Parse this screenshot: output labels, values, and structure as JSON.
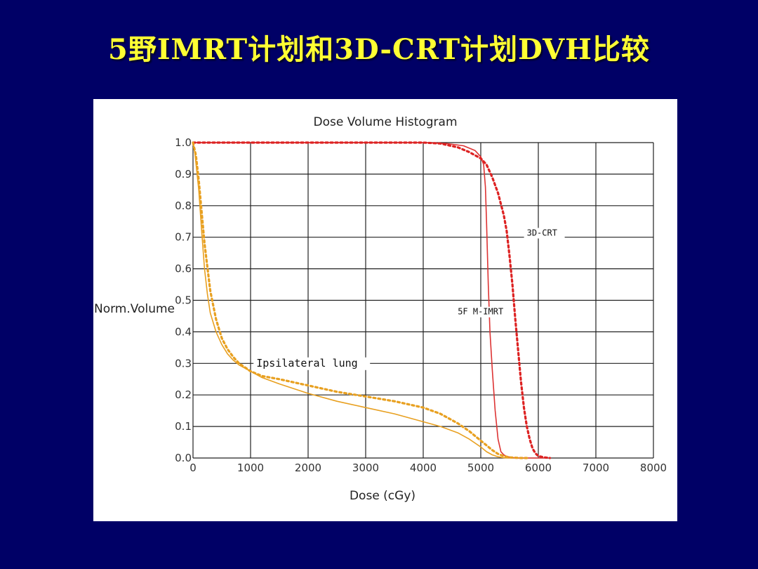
{
  "slide": {
    "title": "5野IMRT计划和3D-CRT计划DVH比较"
  },
  "chart_data": {
    "type": "line",
    "title": "Dose Volume Histogram",
    "xlabel": "Dose (cGy)",
    "ylabel": "Norm.Volume",
    "xlim": [
      0,
      8000
    ],
    "ylim": [
      0,
      1.0
    ],
    "xticks": [
      "0",
      "1000",
      "2000",
      "3000",
      "4000",
      "5000",
      "6000",
      "7000",
      "8000"
    ],
    "yticks": [
      "0.0",
      "0.1",
      "0.2",
      "0.3",
      "0.4",
      "0.5",
      "0.6",
      "0.7",
      "0.8",
      "0.9",
      "1.0"
    ],
    "grid": true,
    "annotations": [
      {
        "text": "3D-CRT",
        "x": 5800,
        "y": 0.705
      },
      {
        "text": "5F M-IMRT",
        "x": 4600,
        "y": 0.455
      },
      {
        "text": "Ipsilateral lung",
        "x": 1100,
        "y": 0.29
      }
    ],
    "series": [
      {
        "color": "#DD3333",
        "style": "solid",
        "x": [
          0,
          1000,
          2000,
          3000,
          4000,
          4400,
          4700,
          4900,
          5000,
          5050,
          5080,
          5100,
          5130,
          5160,
          5200,
          5250,
          5300,
          5350,
          5400,
          5450,
          5500,
          5600,
          5800,
          6000,
          6100
        ],
        "y": [
          1.0,
          1.0,
          1.0,
          1.0,
          1.0,
          0.997,
          0.99,
          0.975,
          0.955,
          0.93,
          0.86,
          0.75,
          0.55,
          0.4,
          0.28,
          0.15,
          0.06,
          0.02,
          0.01,
          0.005,
          0.003,
          0.0,
          0.0,
          0.0,
          0.0
        ]
      },
      {
        "color": "#DD2222",
        "style": "dotted",
        "x": [
          0,
          1000,
          2000,
          3000,
          4000,
          4300,
          4600,
          4800,
          5000,
          5100,
          5200,
          5300,
          5400,
          5450,
          5500,
          5550,
          5600,
          5650,
          5700,
          5750,
          5800,
          5850,
          5900,
          5950,
          6000,
          6100,
          6200
        ],
        "y": [
          1.0,
          1.0,
          1.0,
          1.0,
          1.0,
          0.997,
          0.985,
          0.97,
          0.95,
          0.93,
          0.89,
          0.84,
          0.77,
          0.72,
          0.64,
          0.55,
          0.44,
          0.34,
          0.24,
          0.16,
          0.1,
          0.06,
          0.03,
          0.015,
          0.006,
          0.002,
          0.0
        ]
      },
      {
        "color": "#E8A020",
        "style": "solid",
        "x": [
          0,
          30,
          60,
          100,
          150,
          200,
          250,
          300,
          400,
          500,
          600,
          700,
          800,
          1000,
          1200,
          1500,
          2000,
          2500,
          3000,
          3500,
          4000,
          4300,
          4600,
          4800,
          5000,
          5100,
          5200,
          5300,
          5400,
          5500
        ],
        "y": [
          1.0,
          0.97,
          0.92,
          0.85,
          0.72,
          0.6,
          0.52,
          0.46,
          0.4,
          0.36,
          0.33,
          0.31,
          0.295,
          0.275,
          0.255,
          0.235,
          0.205,
          0.18,
          0.16,
          0.14,
          0.115,
          0.1,
          0.08,
          0.06,
          0.035,
          0.02,
          0.01,
          0.004,
          0.001,
          0.0
        ]
      },
      {
        "color": "#E8A020",
        "style": "dotted",
        "x": [
          0,
          50,
          100,
          150,
          200,
          300,
          400,
          500,
          600,
          700,
          800,
          1000,
          1200,
          1500,
          2000,
          2500,
          3000,
          3500,
          4000,
          4300,
          4600,
          4800,
          5000,
          5100,
          5200,
          5300,
          5400,
          5500,
          5600,
          5700,
          5800
        ],
        "y": [
          1.0,
          0.96,
          0.88,
          0.78,
          0.68,
          0.53,
          0.44,
          0.38,
          0.345,
          0.32,
          0.3,
          0.275,
          0.26,
          0.25,
          0.23,
          0.21,
          0.195,
          0.18,
          0.16,
          0.14,
          0.11,
          0.085,
          0.055,
          0.04,
          0.025,
          0.013,
          0.006,
          0.002,
          0.001,
          0.0,
          0.0
        ]
      }
    ]
  }
}
